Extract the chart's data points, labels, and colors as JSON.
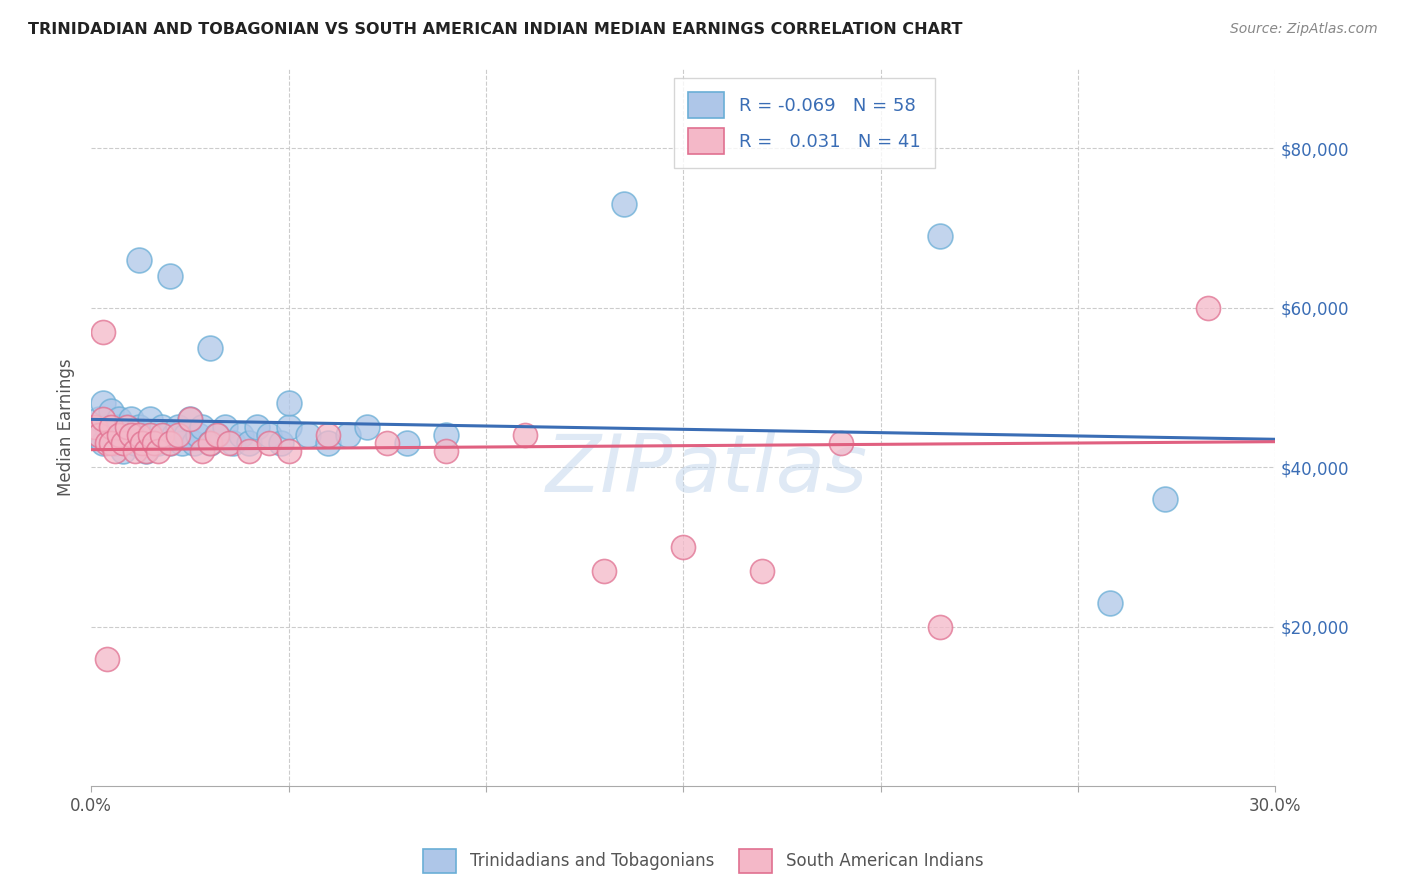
{
  "title": "TRINIDADIAN AND TOBAGONIAN VS SOUTH AMERICAN INDIAN MEDIAN EARNINGS CORRELATION CHART",
  "source": "Source: ZipAtlas.com",
  "ylabel": "Median Earnings",
  "xlim": [
    0.0,
    0.3
  ],
  "ylim": [
    0,
    90000
  ],
  "blue_R": -0.069,
  "blue_N": 58,
  "pink_R": 0.031,
  "pink_N": 41,
  "blue_color": "#aec6e8",
  "blue_edge": "#6aaed6",
  "pink_color": "#f4b8c8",
  "pink_edge": "#e07090",
  "blue_line_color": "#3a6db5",
  "pink_line_color": "#e06080",
  "watermark": "ZIPatlas",
  "blue_x": [
    0.001,
    0.002,
    0.003,
    0.003,
    0.004,
    0.005,
    0.005,
    0.006,
    0.007,
    0.007,
    0.008,
    0.008,
    0.009,
    0.01,
    0.01,
    0.011,
    0.012,
    0.013,
    0.014,
    0.015,
    0.015,
    0.016,
    0.017,
    0.018,
    0.019,
    0.02,
    0.021,
    0.022,
    0.023,
    0.024,
    0.025,
    0.026,
    0.027,
    0.028,
    0.03,
    0.032,
    0.034,
    0.036,
    0.038,
    0.04,
    0.042,
    0.045,
    0.048,
    0.05,
    0.055,
    0.06,
    0.065,
    0.07,
    0.08,
    0.09,
    0.012,
    0.02,
    0.03,
    0.05,
    0.135,
    0.215,
    0.258,
    0.272
  ],
  "blue_y": [
    44000,
    46000,
    43000,
    48000,
    45000,
    44000,
    47000,
    43000,
    45000,
    46000,
    44000,
    42000,
    45000,
    44000,
    46000,
    43000,
    45000,
    44000,
    42000,
    44000,
    46000,
    44000,
    43000,
    45000,
    44000,
    43000,
    44000,
    45000,
    43000,
    44000,
    46000,
    43000,
    44000,
    45000,
    43000,
    44000,
    45000,
    43000,
    44000,
    43000,
    45000,
    44000,
    43000,
    45000,
    44000,
    43000,
    44000,
    45000,
    43000,
    44000,
    66000,
    64000,
    55000,
    48000,
    73000,
    69000,
    23000,
    36000
  ],
  "pink_x": [
    0.001,
    0.002,
    0.003,
    0.003,
    0.004,
    0.005,
    0.005,
    0.006,
    0.007,
    0.008,
    0.009,
    0.01,
    0.011,
    0.012,
    0.013,
    0.014,
    0.015,
    0.016,
    0.017,
    0.018,
    0.02,
    0.022,
    0.025,
    0.028,
    0.03,
    0.032,
    0.035,
    0.04,
    0.045,
    0.05,
    0.06,
    0.075,
    0.09,
    0.11,
    0.13,
    0.15,
    0.17,
    0.19,
    0.215,
    0.283,
    0.004
  ],
  "pink_y": [
    45000,
    44000,
    57000,
    46000,
    43000,
    45000,
    43000,
    42000,
    44000,
    43000,
    45000,
    44000,
    42000,
    44000,
    43000,
    42000,
    44000,
    43000,
    42000,
    44000,
    43000,
    44000,
    46000,
    42000,
    43000,
    44000,
    43000,
    42000,
    43000,
    42000,
    44000,
    43000,
    42000,
    44000,
    27000,
    30000,
    27000,
    43000,
    20000,
    60000,
    16000
  ],
  "blue_line_x0": 0.0,
  "blue_line_y0": 46000,
  "blue_line_x1": 0.3,
  "blue_line_y1": 43500,
  "pink_line_x0": 0.0,
  "pink_line_y0": 42200,
  "pink_line_x1": 0.3,
  "pink_line_y1": 43200
}
